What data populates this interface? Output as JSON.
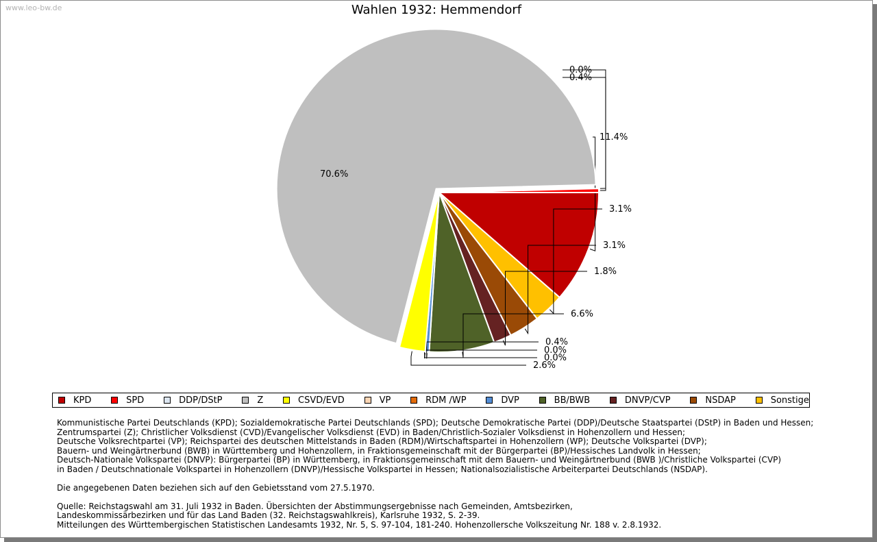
{
  "watermark": "www.leo-bw.de",
  "chart_data": {
    "type": "pie",
    "title": "Wahlen 1932: Hemmendorf",
    "slices": [
      {
        "name": "KPD",
        "value": 11.4,
        "label": "11.4%",
        "color": "#c00000"
      },
      {
        "name": "Sonstige",
        "value": 3.1,
        "label": "3.1%",
        "color": "#ffc000"
      },
      {
        "name": "NSDAP",
        "value": 3.1,
        "label": "3.1%",
        "color": "#9a4a06"
      },
      {
        "name": "DNVP/CVP",
        "value": 1.8,
        "label": "1.8%",
        "color": "#652222"
      },
      {
        "name": "BB/BWB",
        "value": 6.6,
        "label": "6.6%",
        "color": "#4f6228"
      },
      {
        "name": "DVP",
        "value": 0.4,
        "label": "0.4%",
        "color": "#538dd5"
      },
      {
        "name": "RDM /WP",
        "value": 0.0,
        "label": "0.0%",
        "color": "#e26b0a"
      },
      {
        "name": "VP",
        "value": 0.0,
        "label": "0.0%",
        "color": "#fcd5b4"
      },
      {
        "name": "CSVD/EVD",
        "value": 2.6,
        "label": "2.6%",
        "color": "#ffff00"
      },
      {
        "name": "Z",
        "value": 70.6,
        "label": "70.6%",
        "color": "#bfbfbf"
      },
      {
        "name": "DDP/DStP",
        "value": 0.0,
        "label": "0.0%",
        "color": "#dce6f1"
      },
      {
        "name": "SPD",
        "value": 0.4,
        "label": "0.4%",
        "color": "#ff0000"
      }
    ]
  },
  "legend": [
    {
      "label": "KPD",
      "color": "#c00000"
    },
    {
      "label": "SPD",
      "color": "#ff0000"
    },
    {
      "label": "DDP/DStP",
      "color": "#dce6f1"
    },
    {
      "label": "Z",
      "color": "#bfbfbf"
    },
    {
      "label": "CSVD/EVD",
      "color": "#ffff00"
    },
    {
      "label": "VP",
      "color": "#fcd5b4"
    },
    {
      "label": "RDM /WP",
      "color": "#e26b0a"
    },
    {
      "label": "DVP",
      "color": "#538dd5"
    },
    {
      "label": "BB/BWB",
      "color": "#4f6228"
    },
    {
      "label": "DNVP/CVP",
      "color": "#652222"
    },
    {
      "label": "NSDAP",
      "color": "#9a4a06"
    },
    {
      "label": "Sonstige",
      "color": "#ffc000"
    }
  ],
  "notes": {
    "parties": [
      "Kommunistische Partei Deutschlands (KPD); Sozialdemokratische Partei Deutschlands (SPD); Deutsche Demokratische Partei (DDP)/Deutsche Staatspartei (DStP) in Baden und Hessen;",
      "Zentrumspartei (Z); Christlicher Volksdienst (CVD)/Evangelischer Volksdienst (EVD) in Baden/Christlich-Sozialer Volksdienst in Hohenzollern und Hessen;",
      "Deutsche Volksrechtpartei (VP); Reichspartei des deutschen Mittelstands in Baden (RDM)/Wirtschaftspartei in Hohenzollern (WP); Deutsche Volkspartei (DVP);",
      "Bauern- und Weingärtnerbund (BWB) in Württemberg und Hohenzollern, in Fraktionsgemeinschaft mit der Bürgerpartei (BP)/Hessisches Landvolk in Hessen;",
      "Deutsch-Nationale Volkspartei (DNVP): Bürgerpartei (BP) in Württemberg, in Fraktionsgemeinschaft mit dem Bauern- und Weingärtnerbund (BWB )/Christliche Volkspartei (CVP)",
      "in Baden / Deutschnationale Volkspartei in Hohenzollern (DNVP)/Hessische Volkspartei in Hessen; Nationalsozialistische Arbeiterpartei Deutschlands (NSDAP)."
    ],
    "territory": "Die angegebenen Daten beziehen sich auf den Gebietsstand vom 27.5.1970.",
    "source": [
      "Quelle: Reichstagswahl am 31. Juli 1932 in Baden. Übersichten der Abstimmungsergebnisse nach Gemeinden, Amtsbezirken,",
      "Landeskommissärbezirken und für das Land Baden (32. Reichstagswahlkreis), Karlsruhe 1932, S. 2-39.",
      "Mitteilungen des Württembergischen Statistischen Landesamts 1932, Nr. 5, S. 97-104, 181-240. Hohenzollersche Volkszeitung Nr. 188 v. 2.8.1932."
    ]
  }
}
